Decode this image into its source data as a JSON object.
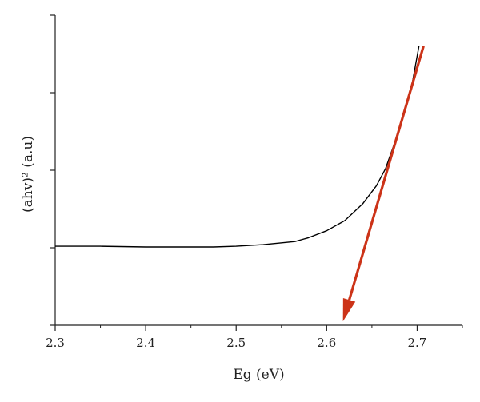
{
  "chart_data": {
    "type": "line",
    "title": "",
    "xlabel": "Eg (eV)",
    "ylabel": "(ahv)² (a.u)",
    "xlim": [
      2.3,
      2.75
    ],
    "ylim": [
      0,
      4
    ],
    "x_ticks": [
      "2.3",
      "2.4",
      "2.5",
      "2.6",
      "2.7"
    ],
    "y_tick_labels_shown": false,
    "grid": false,
    "legend": "none",
    "series": [
      {
        "color": "#000000",
        "x": [
          2.3,
          2.35,
          2.4,
          2.45,
          2.475,
          2.5,
          2.53,
          2.565,
          2.58,
          2.6,
          2.62,
          2.64,
          2.655,
          2.665,
          2.675,
          2.685,
          2.695,
          2.702
        ],
        "y": [
          1.02,
          1.02,
          1.01,
          1.01,
          1.01,
          1.02,
          1.04,
          1.08,
          1.13,
          1.22,
          1.35,
          1.57,
          1.8,
          2.02,
          2.35,
          2.72,
          3.15,
          3.6
        ]
      }
    ],
    "annotations": [
      {
        "type": "arrow",
        "color": "#cc3318",
        "from": [
          2.707,
          3.6
        ],
        "to": [
          2.618,
          0.05
        ]
      }
    ]
  }
}
